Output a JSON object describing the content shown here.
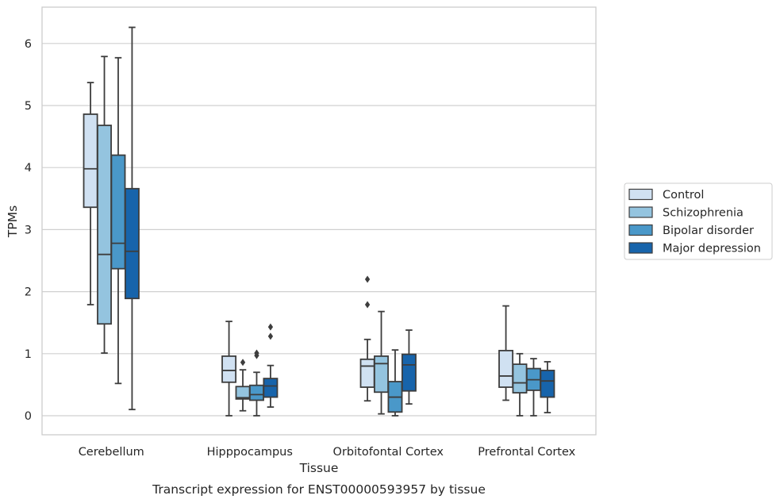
{
  "chart_data": {
    "type": "box",
    "caption": "Transcript expression for ENST00000593957 by tissue",
    "xlabel": "Tissue",
    "ylabel": "TPMs",
    "ylim": [
      -0.3,
      6.6
    ],
    "y_ticks": [
      0,
      1,
      2,
      3,
      4,
      5,
      6
    ],
    "grid": "horizontal",
    "legend_position": "right",
    "categories": [
      "Cerebellum",
      "Hipppocampus",
      "Orbitofontal Cortex",
      "Prefrontal Cortex"
    ],
    "colors": [
      "#d0e1f2",
      "#94c4df",
      "#4a98c9",
      "#1764ab"
    ],
    "series": [
      {
        "name": "Control",
        "boxes": [
          {
            "min": 1.79,
            "q1": 3.36,
            "median": 3.98,
            "q3": 4.86,
            "max": 5.37,
            "outliers": []
          },
          {
            "min": 0.0,
            "q1": 0.54,
            "median": 0.73,
            "q3": 0.96,
            "max": 1.52,
            "outliers": []
          },
          {
            "min": 0.24,
            "q1": 0.46,
            "median": 0.8,
            "q3": 0.91,
            "max": 1.23,
            "outliers": [
              1.79,
              2.2
            ]
          },
          {
            "min": 0.25,
            "q1": 0.46,
            "median": 0.64,
            "q3": 1.05,
            "max": 1.77,
            "outliers": []
          }
        ]
      },
      {
        "name": "Schizophrenia",
        "boxes": [
          {
            "min": 1.01,
            "q1": 1.48,
            "median": 2.6,
            "q3": 4.68,
            "max": 5.79,
            "outliers": []
          },
          {
            "min": 0.08,
            "q1": 0.27,
            "median": 0.29,
            "q3": 0.47,
            "max": 0.74,
            "outliers": [
              0.86
            ]
          },
          {
            "min": 0.03,
            "q1": 0.38,
            "median": 0.84,
            "q3": 0.96,
            "max": 1.68,
            "outliers": []
          },
          {
            "min": 0.0,
            "q1": 0.37,
            "median": 0.53,
            "q3": 0.83,
            "max": 1.0,
            "outliers": []
          }
        ]
      },
      {
        "name": "Bipolar disorder",
        "boxes": [
          {
            "min": 0.52,
            "q1": 2.37,
            "median": 2.78,
            "q3": 4.2,
            "max": 5.77,
            "outliers": []
          },
          {
            "min": 0.0,
            "q1": 0.25,
            "median": 0.34,
            "q3": 0.49,
            "max": 0.7,
            "outliers": [
              0.97,
              1.01
            ]
          },
          {
            "min": 0.0,
            "q1": 0.06,
            "median": 0.3,
            "q3": 0.55,
            "max": 1.06,
            "outliers": []
          },
          {
            "min": 0.0,
            "q1": 0.41,
            "median": 0.58,
            "q3": 0.76,
            "max": 0.92,
            "outliers": []
          }
        ]
      },
      {
        "name": "Major depression",
        "boxes": [
          {
            "min": 0.1,
            "q1": 1.89,
            "median": 2.65,
            "q3": 3.66,
            "max": 6.26,
            "outliers": []
          },
          {
            "min": 0.14,
            "q1": 0.3,
            "median": 0.48,
            "q3": 0.6,
            "max": 0.81,
            "outliers": [
              1.28,
              1.43
            ]
          },
          {
            "min": 0.19,
            "q1": 0.4,
            "median": 0.82,
            "q3": 0.99,
            "max": 1.38,
            "outliers": []
          },
          {
            "min": 0.05,
            "q1": 0.3,
            "median": 0.56,
            "q3": 0.73,
            "max": 0.87,
            "outliers": []
          }
        ]
      }
    ]
  }
}
